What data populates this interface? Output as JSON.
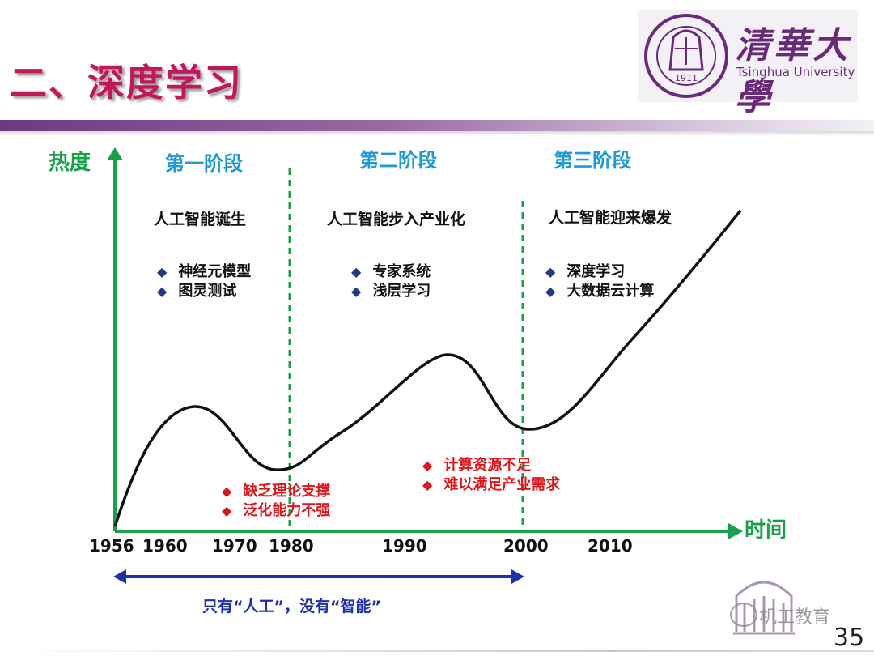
{
  "slide": {
    "title": "二、深度学习",
    "page_number": "35"
  },
  "logo": {
    "chinese_name": "清華大學",
    "english_name": "Tsinghua University",
    "seal_year": "1911"
  },
  "watermark": {
    "text": "机工教育"
  },
  "chart": {
    "y_axis_label": "热度",
    "x_axis_label": "时间",
    "phases": [
      {
        "title": "第一阶段",
        "subtitle": "人工智能诞生",
        "bullets": [
          "神经元模型",
          "图灵测试"
        ]
      },
      {
        "title": "第二阶段",
        "subtitle": "人工智能步入产业化",
        "bullets": [
          "专家系统",
          "浅层学习"
        ]
      },
      {
        "title": "第三阶段",
        "subtitle": "人工智能迎来爆发",
        "bullets": [
          "深度学习",
          "大数据云计算"
        ]
      }
    ],
    "limitations_1": [
      "缺乏理论支撑",
      "泛化能力不强"
    ],
    "limitations_2": [
      "计算资源不足",
      "难以满足产业需求"
    ],
    "years": [
      "1956",
      "1960",
      "1970",
      "1980",
      "1990",
      "2000",
      "2010"
    ],
    "bottom_note": "只有“人工”，没有“智能”"
  },
  "chart_data": {
    "type": "line",
    "xlabel": "时间",
    "ylabel": "热度",
    "x_ticks": [
      1956,
      1960,
      1970,
      1980,
      1990,
      2000,
      2010
    ],
    "phase_boundaries": [
      1980,
      2000
    ],
    "curve_shape": "rise-peak ~1967, dip ~1979, peak ~1993, dip ~2000, steep rise to 2016",
    "colors": {
      "axis": "#18a04a",
      "curve": "#111111",
      "phase_title": "#1e9ad6",
      "limitation_text": "#e0151b",
      "bullet_marker": "#1f3a8a",
      "span_arrow": "#1f2fb0",
      "title": "#c2185b"
    }
  }
}
